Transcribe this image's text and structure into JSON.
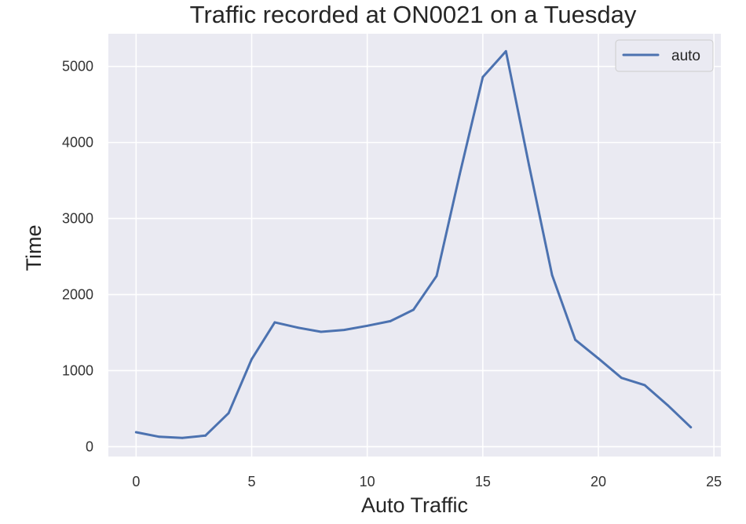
{
  "chart_data": {
    "type": "line",
    "title": "Traffic recorded at ON0021 on a Tuesday",
    "xlabel": "Auto Traffic",
    "ylabel": "Time",
    "xlim": [
      -1.2,
      25.3
    ],
    "ylim": [
      -130,
      5430
    ],
    "x_ticks": [
      0,
      5,
      10,
      15,
      20,
      25
    ],
    "y_ticks": [
      0,
      1000,
      2000,
      3000,
      4000,
      5000
    ],
    "grid": true,
    "legend_position": "top-right",
    "series": [
      {
        "name": "auto",
        "color": "#4c72b0",
        "x": [
          0,
          1,
          2,
          3,
          4,
          5,
          6,
          7,
          8,
          9,
          10,
          11,
          12,
          13,
          14,
          15,
          16,
          17,
          18,
          19,
          20,
          21,
          22,
          23,
          24
        ],
        "values": [
          190,
          130,
          115,
          145,
          440,
          1150,
          1635,
          1565,
          1510,
          1535,
          1590,
          1650,
          1800,
          2245,
          3580,
          4860,
          5200,
          3700,
          2255,
          1405,
          1160,
          905,
          810,
          545,
          255
        ]
      }
    ]
  },
  "style": {
    "plot_background": "#eaeaf2",
    "grid_color": "#ffffff",
    "text_color": "#262626",
    "tick_color": "#333333"
  }
}
